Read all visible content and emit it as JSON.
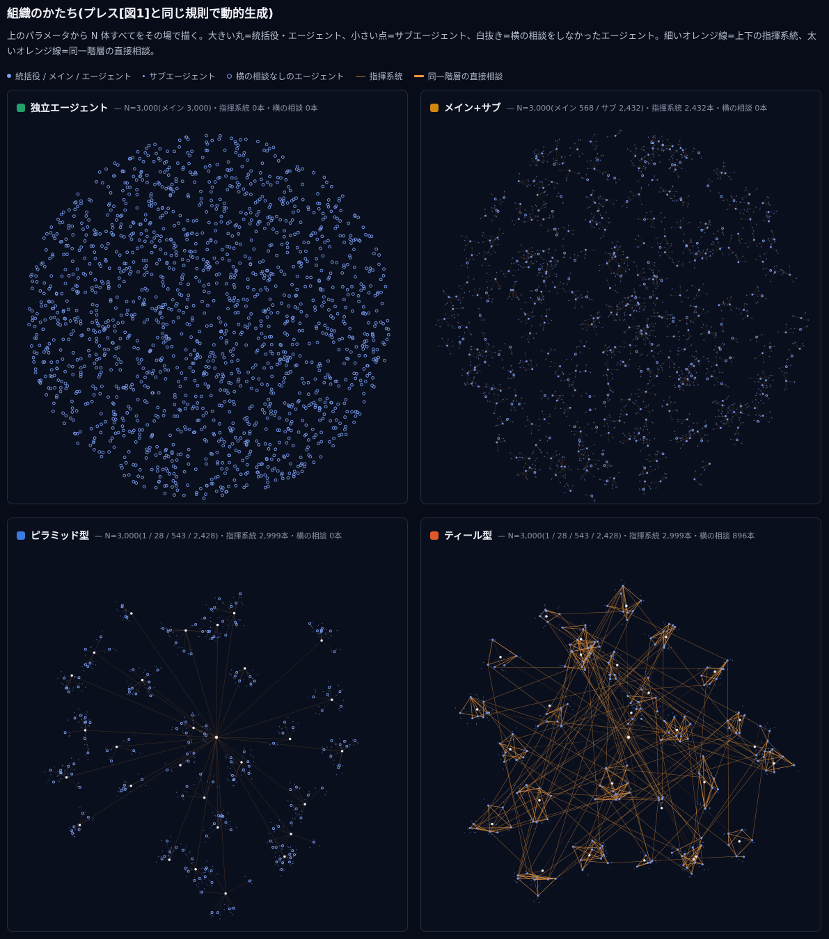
{
  "page": {
    "title": "組織のかたち(プレス[図1]と同じ規則で動的生成)",
    "description": "上のパラメータから N 体すべてをその場で描く。大きい丸=統括役・エージェント、小さい点=サブエージェント、白抜き=横の相談をしなかったエージェント。細いオレンジ線=上下の指揮系統、太いオレンジ線=同一階層の直接相談。"
  },
  "legend": {
    "items": [
      {
        "label": "統括役 / メイン / エージェント",
        "icon": "filled-dot"
      },
      {
        "label": "サブエージェント",
        "icon": "small-dot"
      },
      {
        "label": "横の相談なしのエージェント",
        "icon": "hollow-ring"
      },
      {
        "label": "指揮系統",
        "icon": "thin-line"
      },
      {
        "label": "同一階層の直接相談",
        "icon": "thick-line"
      }
    ]
  },
  "colors": {
    "background": "#080c18",
    "panel_background": "#0a0f1d",
    "node": "#7a9ef0",
    "command_line": "#b9792e",
    "peer_line": "#f09a3e"
  },
  "panels": [
    {
      "id": "independent",
      "name": "独立エージェント",
      "stats": "— N=3,000(メイン 3,000)・指揮系統 0本・横の相談 0本",
      "swatch": "#22a06b",
      "N": 3000,
      "mains": 3000,
      "subs": 0,
      "command_links": 0,
      "peer_links": 0
    },
    {
      "id": "main-sub",
      "name": "メイン+サブ",
      "stats": "— N=3,000(メイン 568 / サブ 2,432)・指揮系統 2,432本・横の相談 0本",
      "swatch": "#d4870f",
      "N": 3000,
      "mains": 568,
      "subs": 2432,
      "command_links": 2432,
      "peer_links": 0
    },
    {
      "id": "pyramid",
      "name": "ピラミッド型",
      "stats": "— N=3,000(1 / 28 / 543 / 2,428)・指揮系統 2,999本・横の相談 0本",
      "swatch": "#3b7be0",
      "N": 3000,
      "levels": [
        1,
        28,
        543,
        2428
      ],
      "command_links": 2999,
      "peer_links": 0
    },
    {
      "id": "teal",
      "name": "ティール型",
      "stats": "— N=3,000(1 / 28 / 543 / 2,428)・指揮系統 2,999本・横の相談 896本",
      "swatch": "#e0582a",
      "N": 3000,
      "levels": [
        1,
        28,
        543,
        2428
      ],
      "command_links": 2999,
      "peer_links": 896
    }
  ]
}
